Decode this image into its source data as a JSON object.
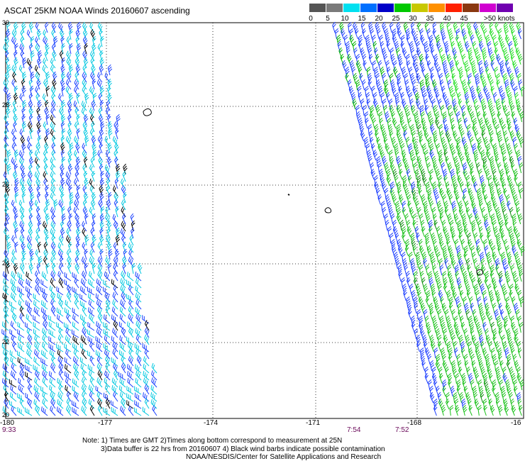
{
  "header": {
    "title": "ASCAT 25KM NOAA Winds 20160607 ascending"
  },
  "legend": {
    "colors": [
      "#555555",
      "#7a7a7a",
      "#00e0f0",
      "#0070ff",
      "#0000c8",
      "#00c800",
      "#c8c800",
      "#ff9000",
      "#ff2000",
      "#8a3810",
      "#d000d0",
      "#7000b0"
    ],
    "labels": [
      "0",
      "5",
      "10",
      "15",
      "20",
      "25",
      "30",
      "35",
      "40",
      "45",
      ">50 knots"
    ]
  },
  "map": {
    "lon_labels": [
      "-180",
      "-177",
      "-174",
      "-171",
      "-168",
      "-16"
    ],
    "lat_labels": [
      "30",
      "28",
      "26",
      "24",
      "22",
      "20"
    ],
    "time_labels": [
      "9:33",
      "7:54",
      "7:52"
    ]
  },
  "notes": {
    "line1": "Note: 1) Times are GMT 2)Times along bottom correspond to measurement at 25N",
    "line2": "3)Data buffer is 22 hrs from 20160607 4) Black wind barbs indicate possible contamination",
    "line3": "NOAA/NESDIS/Center for Satellite Applications and Research"
  }
}
